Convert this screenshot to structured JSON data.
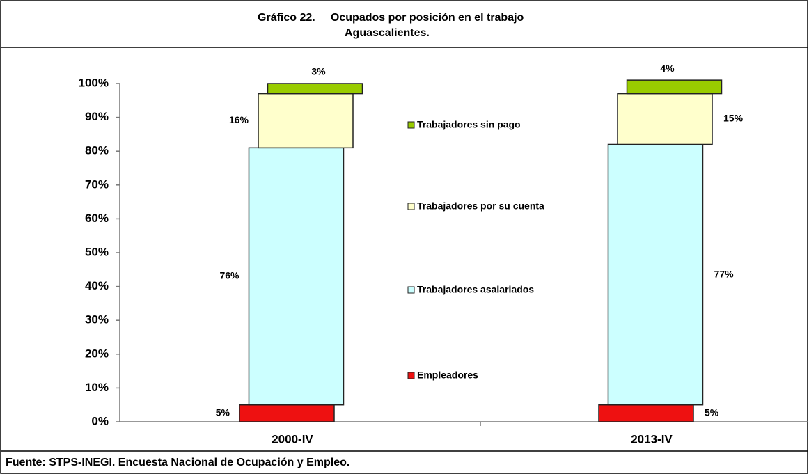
{
  "chart_data": {
    "type": "bar",
    "stacked": true,
    "title": "Gráfico 22.     Ocupados por posición en el trabajo",
    "subtitle": "Aguascalientes.",
    "source": "Fuente: STPS-INEGI. Encuesta Nacional de Ocupación y Empleo.",
    "categories": [
      "2000-IV",
      "2013-IV"
    ],
    "series": [
      {
        "name": "Empleadores",
        "color": "#ee1111",
        "values": [
          5,
          5
        ],
        "value_labels": [
          "5%",
          "5%"
        ]
      },
      {
        "name": "Trabajadores asalariados",
        "color": "#ccffff",
        "values": [
          76,
          77
        ],
        "value_labels": [
          "76%",
          "77%"
        ]
      },
      {
        "name": "Trabajadores por su cuenta",
        "color": "#ffffcc",
        "values": [
          16,
          15
        ],
        "value_labels": [
          "16%",
          "15%"
        ]
      },
      {
        "name": "Trabajadores sin pago",
        "color": "#99cc00",
        "values": [
          3,
          4
        ],
        "value_labels": [
          "3%",
          "4%"
        ]
      }
    ],
    "ylim": [
      0,
      100
    ],
    "yticks": [
      {
        "value": 0,
        "label": "0%"
      },
      {
        "value": 10,
        "label": "10%"
      },
      {
        "value": 20,
        "label": "20%"
      },
      {
        "value": 30,
        "label": "30%"
      },
      {
        "value": 40,
        "label": "40%"
      },
      {
        "value": 50,
        "label": "50%"
      },
      {
        "value": 60,
        "label": "60%"
      },
      {
        "value": 70,
        "label": "70%"
      },
      {
        "value": 80,
        "label": "80%"
      },
      {
        "value": 90,
        "label": "90%"
      },
      {
        "value": 100,
        "label": "100%"
      }
    ],
    "grid": false
  }
}
